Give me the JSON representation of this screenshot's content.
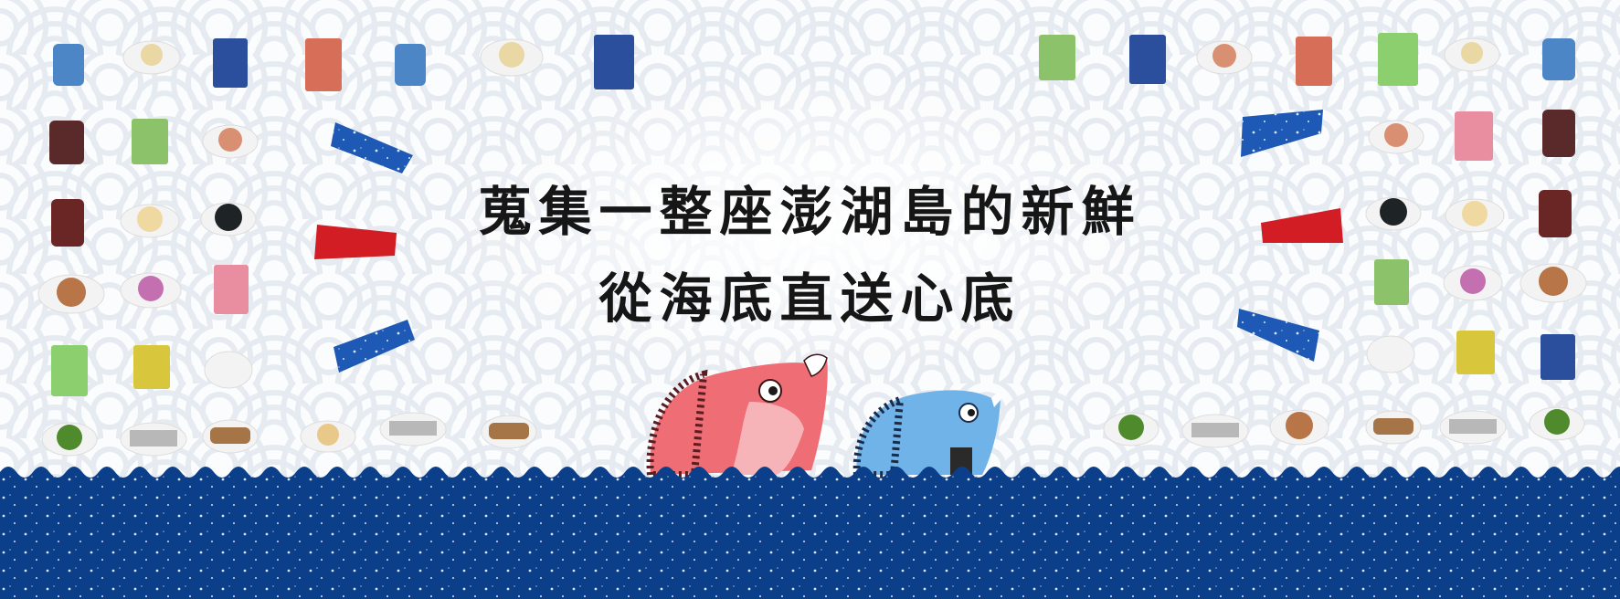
{
  "banner": {
    "headline_line1": "蒐集一整座澎湖島的新鮮",
    "headline_line2": "從海底直送心底"
  },
  "colors": {
    "sea": "#0b3f8a",
    "flag_blue": "#1e5ab5",
    "flag_red": "#d21d24",
    "pattern": "#e9edf2",
    "fish_red": "#ef6d74",
    "fish_blue": "#6fb3e8"
  }
}
